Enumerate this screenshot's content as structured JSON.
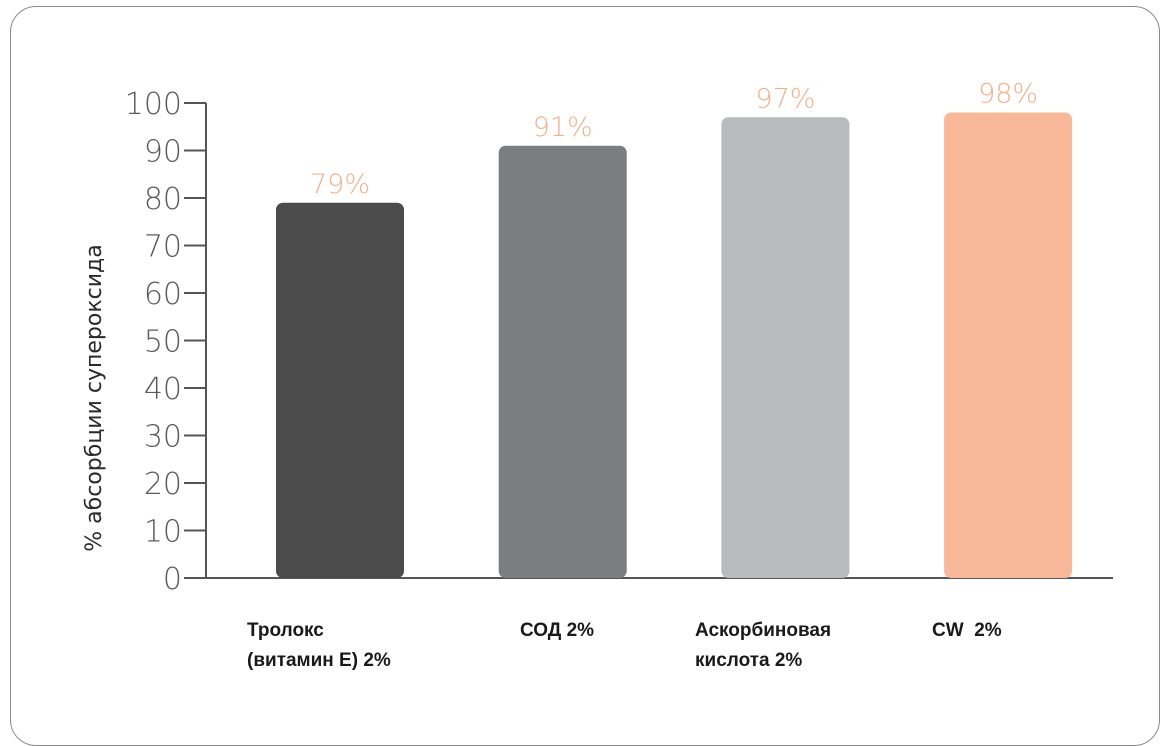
{
  "chart_data": {
    "type": "bar",
    "ylabel": "% абсорбции супероксида",
    "ylim": [
      0,
      100
    ],
    "yticks": [
      0,
      10,
      20,
      30,
      40,
      50,
      60,
      70,
      80,
      90,
      100
    ],
    "grid": false,
    "categories": [
      [
        "Тролокс",
        "(витамин Е) 2%"
      ],
      [
        "СОД 2%"
      ],
      [
        "Аскорбиновая",
        "кислота 2%"
      ],
      [
        "CW  2%"
      ]
    ],
    "values": [
      79,
      91,
      97,
      98
    ],
    "data_labels": [
      "79%",
      "91%",
      "97%",
      "98%"
    ],
    "colors": [
      "#4b4b4b",
      "#7b7d7f",
      "#b8babc",
      "#f7b99a"
    ],
    "label_color": "#f0b08c"
  }
}
